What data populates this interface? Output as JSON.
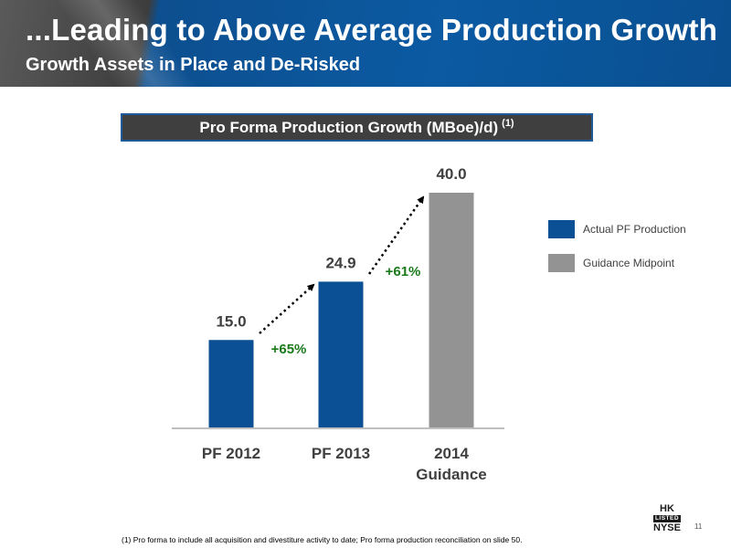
{
  "header": {
    "title": "...Leading to Above Average Production Growth",
    "subtitle": "Growth Assets in Place and De-Risked"
  },
  "chart_data": {
    "type": "bar",
    "title": "Pro Forma Production Growth (MBoe)/d)",
    "title_note": "(1)",
    "categories": [
      "PF 2012",
      "PF 2013",
      "2014 Guidance"
    ],
    "category_lines": [
      [
        "PF 2012"
      ],
      [
        "PF 2013"
      ],
      [
        "2014",
        "Guidance"
      ]
    ],
    "values": [
      15.0,
      24.9,
      40.0
    ],
    "value_labels": [
      "15.0",
      "24.9",
      "40.0"
    ],
    "bar_series": [
      "Actual PF Production",
      "Actual PF Production",
      "Guidance Midpoint"
    ],
    "series": [
      {
        "name": "Actual PF Production",
        "color": "#0b4f94"
      },
      {
        "name": "Guidance Midpoint",
        "color": "#939393"
      }
    ],
    "growth_annotations": [
      {
        "from": "PF 2012",
        "to": "PF 2013",
        "label": "+65%"
      },
      {
        "from": "PF 2013",
        "to": "2014 Guidance",
        "label": "+61%"
      }
    ],
    "ylim": [
      0,
      40
    ],
    "xlabel": "",
    "ylabel": "",
    "grid": false,
    "legend_position": "right"
  },
  "colors": {
    "annotation_green": "#1a7a1a",
    "header_blue": "#0b5aa2"
  },
  "footnote": "(1) Pro forma to include all acquisition and divestiture activity to date; Pro forma production reconciliation on slide 50.",
  "page_number": "11",
  "logo": {
    "top": "HK",
    "middle": "LISTED",
    "bottom": "NYSE"
  }
}
